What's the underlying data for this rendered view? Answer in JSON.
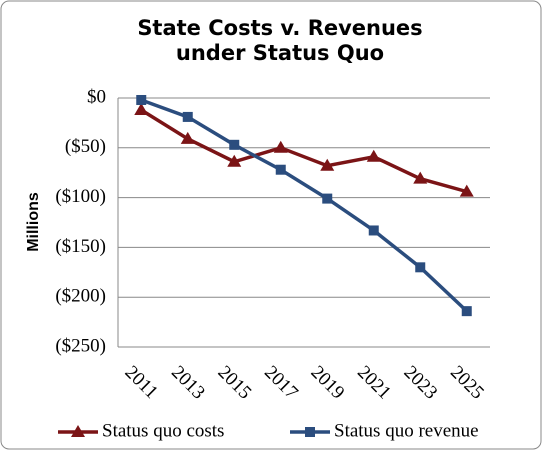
{
  "chart_data": {
    "type": "line",
    "title": [
      "State Costs v. Revenues",
      "under Status Quo"
    ],
    "y_label": "Millions",
    "categories": [
      "2011",
      "2013",
      "2015",
      "2017",
      "2019",
      "2021",
      "2023",
      "2025"
    ],
    "series": [
      {
        "name": "Status quo costs",
        "color": "#7b1416",
        "marker": "triangle",
        "values": [
          -12,
          -41,
          -64,
          -50,
          -68,
          -59,
          -81,
          -94
        ]
      },
      {
        "name": "Status quo revenue",
        "color": "#2b4d7e",
        "marker": "square",
        "values": [
          -2,
          -19,
          -47,
          -72,
          -101,
          -133,
          -170,
          -214
        ]
      }
    ],
    "ylim": [
      -250,
      0
    ],
    "yticks": [
      {
        "value": 0,
        "label": "$0"
      },
      {
        "value": -50,
        "label": "($50)"
      },
      {
        "value": -100,
        "label": "($100)"
      },
      {
        "value": -150,
        "label": "($150)"
      },
      {
        "value": -200,
        "label": "($200)"
      },
      {
        "value": -250,
        "label": "($250)"
      }
    ],
    "grid": true,
    "legend": "bottom"
  }
}
